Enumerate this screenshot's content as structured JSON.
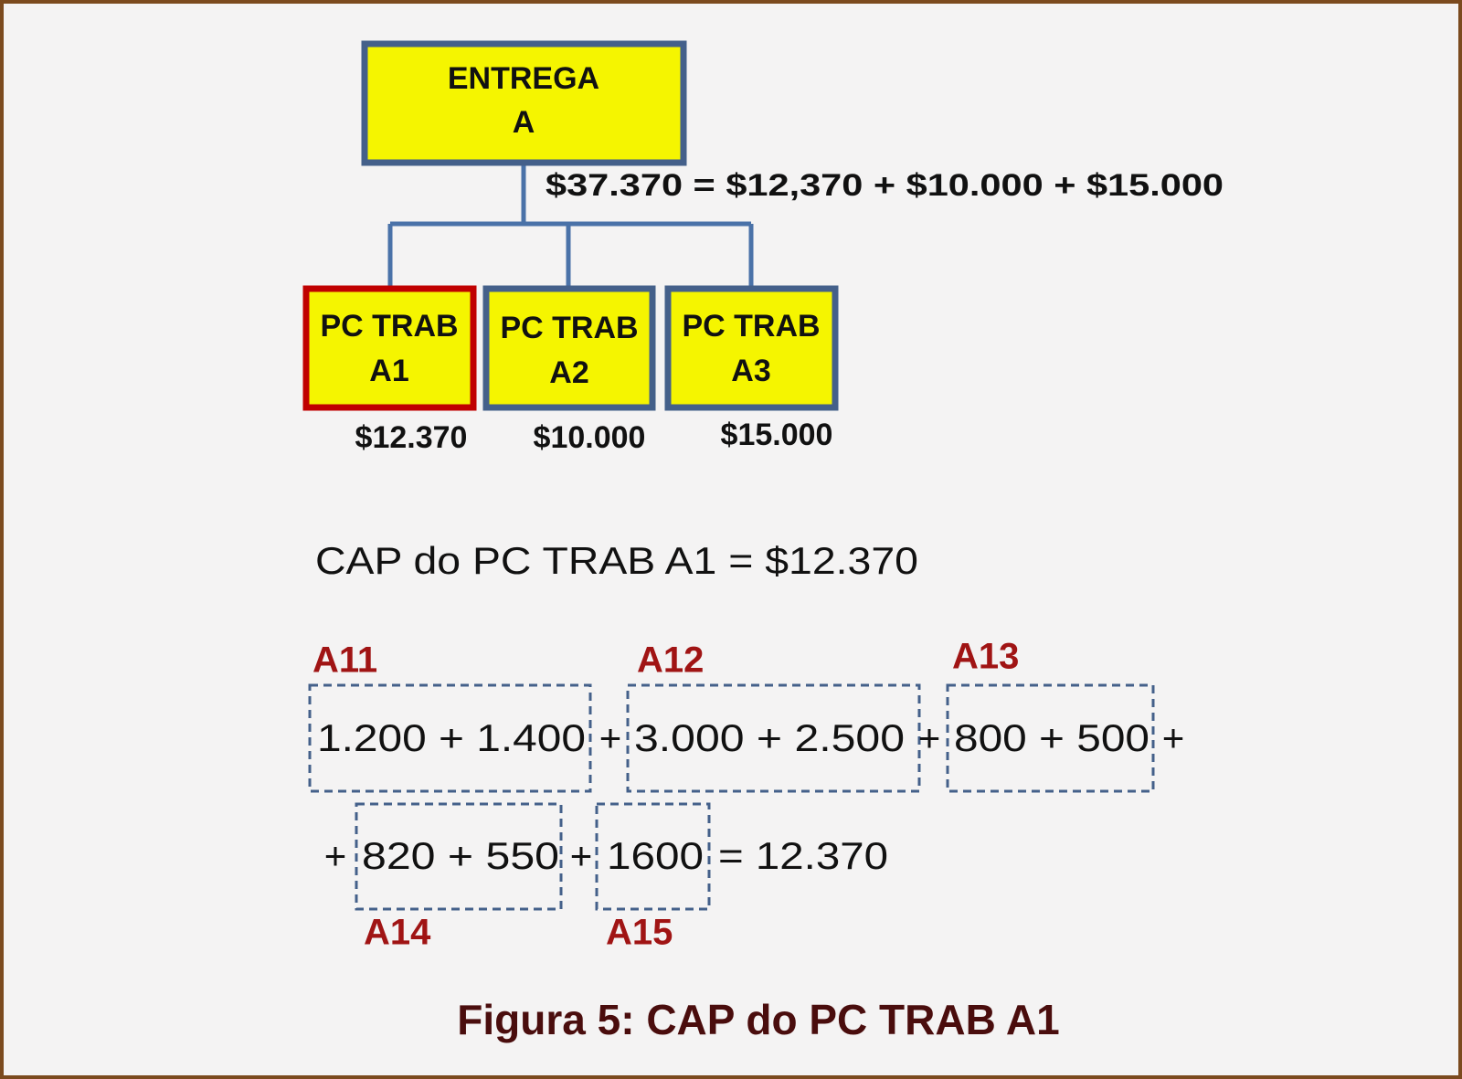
{
  "root": {
    "lines": [
      "ENTREGA",
      "A"
    ]
  },
  "total_equation": "$37.370  = $12,370 +  $10.000 + $15.000",
  "children": [
    {
      "lines": [
        "PC TRAB",
        "A1"
      ],
      "cost": "$12.370"
    },
    {
      "lines": [
        "PC TRAB",
        "A2"
      ],
      "cost": "$10.000"
    },
    {
      "lines": [
        "PC TRAB",
        "A3"
      ],
      "cost": "$15.000"
    }
  ],
  "cap_line": "CAP do PC TRAB A1 = $12.370",
  "work_packages": [
    {
      "label": "A11",
      "expression": "1.200 + 1.400"
    },
    {
      "label": "A12",
      "expression": "3.000 + 2.500"
    },
    {
      "label": "A13",
      "expression": "800 + 500"
    },
    {
      "label": "A14",
      "expression": "820 + 550"
    },
    {
      "label": "A15",
      "expression": "1600"
    }
  ],
  "operators": [
    "+",
    "+",
    "+",
    "+",
    "+",
    "= 12.370"
  ],
  "caption": "Figura 5: CAP do PC TRAB A1"
}
